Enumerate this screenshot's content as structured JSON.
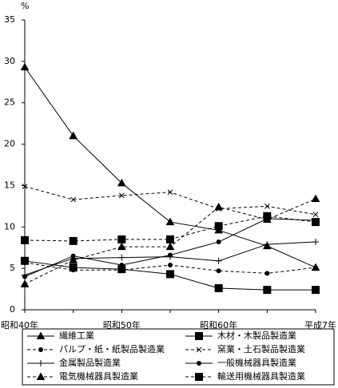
{
  "chart_data": {
    "type": "line",
    "y_label": "%",
    "categories": [
      "昭和40年",
      null,
      "昭和50年",
      null,
      "昭和60年",
      null,
      "平成7年"
    ],
    "ylim": [
      0,
      35
    ],
    "yticks": [
      0,
      5,
      10,
      15,
      20,
      25,
      30,
      35
    ],
    "series": [
      {
        "name": "繊維工業",
        "color": "#000000",
        "marker": "triangle",
        "dashed": false,
        "values": [
          29.3,
          21.0,
          15.3,
          10.6,
          9.6,
          7.7,
          5.1
        ]
      },
      {
        "name": "木材・木製品製造業",
        "color": "#000000",
        "marker": "square",
        "dashed": false,
        "values": [
          5.9,
          5.1,
          4.9,
          4.3,
          2.6,
          2.4,
          2.4
        ]
      },
      {
        "name": "パルプ・紙・紙製品製造業",
        "color": "#000000",
        "marker": "circle",
        "dashed": true,
        "values": [
          5.7,
          4.8,
          4.8,
          5.4,
          4.7,
          4.4,
          5.1
        ]
      },
      {
        "name": "窯業・土石製品製造業",
        "color": "#000000",
        "marker": "x",
        "dashed": true,
        "values": [
          14.9,
          13.3,
          13.8,
          14.2,
          12.2,
          12.5,
          11.5
        ]
      },
      {
        "name": "金属製品製造業",
        "color": "#000000",
        "marker": "plus",
        "dashed": false,
        "values": [
          4.2,
          6.2,
          6.3,
          6.4,
          5.9,
          7.9,
          8.2
        ]
      },
      {
        "name": "一般機械器具製造業",
        "color": "#000000",
        "marker": "circle",
        "dashed": false,
        "values": [
          4.0,
          6.5,
          5.4,
          6.6,
          8.2,
          11.0,
          10.8
        ]
      },
      {
        "name": "電気機械器具製造業",
        "color": "#000000",
        "marker": "triangle",
        "dashed": true,
        "values": [
          3.1,
          6.0,
          7.6,
          7.6,
          12.4,
          10.9,
          13.4
        ]
      },
      {
        "name": "輸送用機械器具製造業",
        "color": "#000000",
        "marker": "square",
        "dashed": true,
        "values": [
          8.4,
          8.3,
          8.5,
          8.5,
          10.1,
          11.3,
          10.6
        ]
      }
    ]
  }
}
